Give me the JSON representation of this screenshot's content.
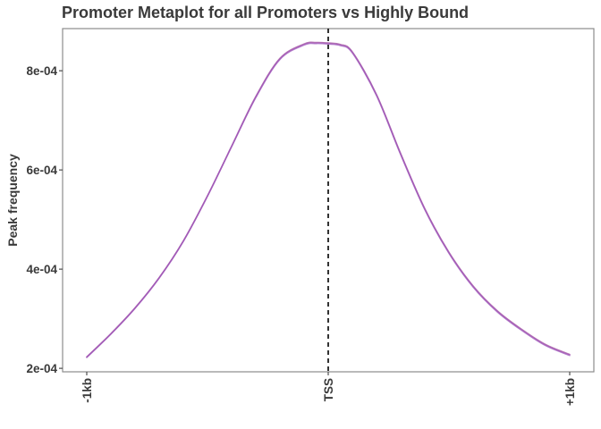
{
  "chart_data": {
    "type": "line",
    "title": "Promoter Metaplot for all Promoters vs Highly Bound",
    "xlabel": "",
    "ylabel": "Peak frequency",
    "xlim": [
      -1000,
      1000
    ],
    "ylim": [
      0.000193,
      0.000885
    ],
    "x_ticks": [
      {
        "value": -1000,
        "label": "-1kb"
      },
      {
        "value": 0,
        "label": "TSS"
      },
      {
        "value": 1000,
        "label": "+1kb"
      }
    ],
    "y_ticks": [
      {
        "value": 0.0002,
        "label": "2e-04"
      },
      {
        "value": 0.0004,
        "label": "4e-04"
      },
      {
        "value": 0.0006,
        "label": "6e-04"
      },
      {
        "value": 0.0008,
        "label": "8e-04"
      }
    ],
    "vline": {
      "x": 0,
      "style": "dashed",
      "color": "#000000"
    },
    "grid": false,
    "legend": "none",
    "series": [
      {
        "color": "#b06bb0",
        "x": [
          -1000,
          -900,
          -800,
          -700,
          -600,
          -500,
          -400,
          -300,
          -200,
          -100,
          -50,
          0,
          50,
          100,
          200,
          300,
          400,
          500,
          600,
          700,
          800,
          900,
          1000
        ],
        "values": [
          0.000223,
          0.00027,
          0.000322,
          0.000383,
          0.000457,
          0.000548,
          0.000648,
          0.000748,
          0.000825,
          0.000854,
          0.000857,
          0.000856,
          0.000853,
          0.000838,
          0.000752,
          0.000633,
          0.000522,
          0.000434,
          0.000366,
          0.000316,
          0.000279,
          0.000248,
          0.000228
        ]
      },
      {
        "color": "#9a4fb8",
        "x": [
          -1000,
          -900,
          -800,
          -700,
          -600,
          -500,
          -400,
          -300,
          -200,
          -100,
          -50,
          0,
          50,
          100,
          200,
          300,
          400,
          500,
          600,
          700,
          800,
          900,
          1000
        ],
        "values": [
          0.000222,
          0.000269,
          0.000321,
          0.000382,
          0.000456,
          0.000547,
          0.000647,
          0.000746,
          0.000823,
          0.000852,
          0.000855,
          0.000854,
          0.000851,
          0.000836,
          0.00075,
          0.000631,
          0.00052,
          0.000432,
          0.000364,
          0.000314,
          0.000277,
          0.000246,
          0.000226
        ]
      }
    ]
  },
  "colors": {
    "panel_border": "#8c8c8c",
    "axis_text": "#3a3a3a"
  }
}
